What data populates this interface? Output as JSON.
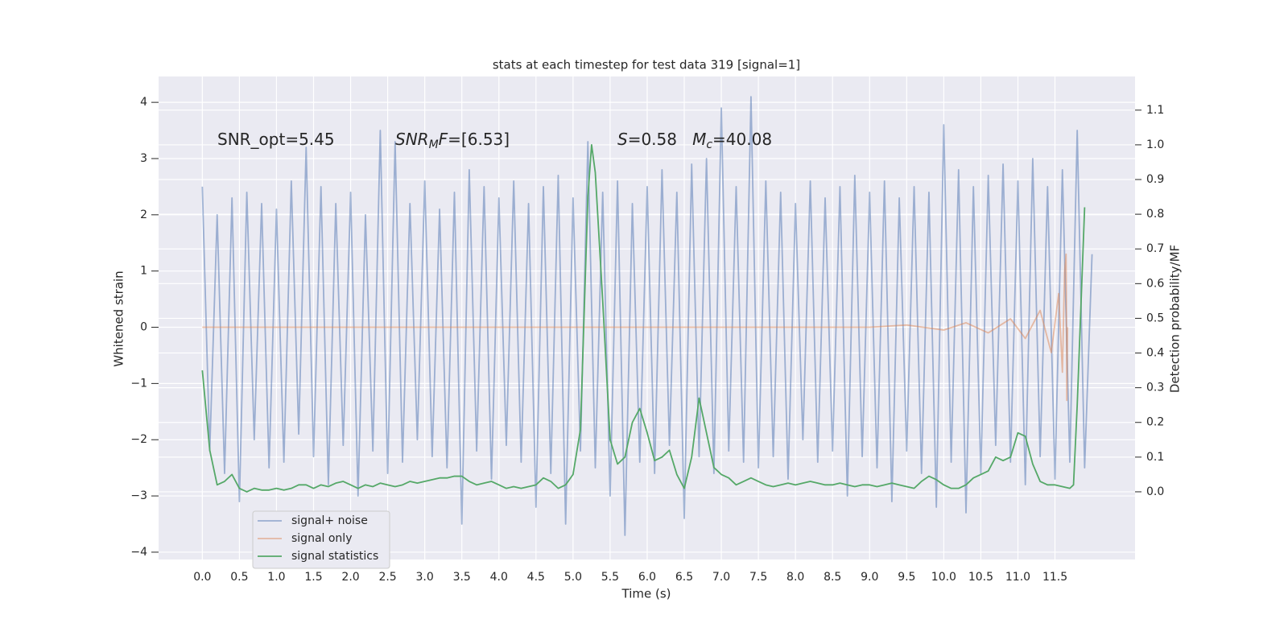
{
  "chart_data": {
    "type": "line",
    "title": "stats at each timestep for test data 319 [signal=1]",
    "xlabel": "Time (s)",
    "ylabel": "Whitened strain",
    "y2label": "Detection probability/MF",
    "xlim": [
      -0.59,
      12.58
    ],
    "ylim": [
      -4.13,
      4.46
    ],
    "y2lim": [
      -0.195,
      1.197
    ],
    "xticks": [
      {
        "value": 0,
        "label": "0.0"
      },
      0.5,
      {
        "value": 1,
        "label": "1.0"
      },
      1.5,
      {
        "value": 2,
        "label": "2.0"
      },
      2.5,
      {
        "value": 3,
        "label": "3.0"
      },
      3.5,
      {
        "value": 4,
        "label": "4.0"
      },
      4.5,
      {
        "value": 5,
        "label": "5.0"
      },
      5.5,
      {
        "value": 6,
        "label": "6.0"
      },
      6.5,
      {
        "value": 7,
        "label": "7.0"
      },
      7.5,
      {
        "value": 8,
        "label": "8.0"
      },
      8.5,
      {
        "value": 9,
        "label": "9.0"
      },
      9.5,
      {
        "value": 10,
        "label": "10.0"
      },
      10.5,
      {
        "value": 11,
        "label": "11.0"
      },
      11.5
    ],
    "yticks": [
      {
        "value": -4,
        "label": "−4"
      },
      {
        "value": -3,
        "label": "−3"
      },
      {
        "value": -2,
        "label": "−2"
      },
      {
        "value": -1,
        "label": "−1"
      },
      0,
      1,
      2,
      3,
      4
    ],
    "y2ticks": [
      {
        "value": 0,
        "label": "0.0"
      },
      0.1,
      0.2,
      0.3,
      0.4,
      0.5,
      0.6,
      0.7,
      0.8,
      0.9,
      {
        "value": 1,
        "label": "1.0"
      },
      1.1
    ],
    "grid": true,
    "legend": "lower left",
    "annotations": [
      {
        "parts": [
          {
            "text": "SNR_opt=5.45",
            "style": "normal"
          }
        ]
      },
      {
        "parts": [
          {
            "text": "SNR",
            "style": "italic"
          },
          {
            "text": "M",
            "style": "sub"
          },
          {
            "text": "F",
            "style": "italic"
          },
          {
            "text": "=[6.53]",
            "style": "normal"
          }
        ]
      },
      {
        "parts": [
          {
            "text": "S",
            "style": "italic"
          },
          {
            "text": "=0.58   ",
            "style": "normal"
          },
          {
            "text": "M",
            "style": "italic"
          },
          {
            "text": "c",
            "style": "sub"
          },
          {
            "text": "=40.08",
            "style": "normal"
          }
        ]
      }
    ],
    "series": [
      {
        "name": "signal+ noise",
        "color": "#4c72b0",
        "opacity": 0.5,
        "x": [
          0,
          0.1,
          0.2,
          0.3,
          0.4,
          0.5,
          0.6,
          0.7,
          0.8,
          0.9,
          1,
          1.1,
          1.2,
          1.3,
          1.4,
          1.5,
          1.6,
          1.7,
          1.8,
          1.9,
          2,
          2.1,
          2.2,
          2.3,
          2.4,
          2.5,
          2.6,
          2.7,
          2.8,
          2.9,
          3,
          3.1,
          3.2,
          3.3,
          3.4,
          3.5,
          3.6,
          3.7,
          3.8,
          3.9,
          4,
          4.1,
          4.2,
          4.3,
          4.4,
          4.5,
          4.6,
          4.7,
          4.8,
          4.9,
          5,
          5.1,
          5.2,
          5.3,
          5.4,
          5.5,
          5.6,
          5.7,
          5.8,
          5.9,
          6,
          6.1,
          6.2,
          6.3,
          6.4,
          6.5,
          6.6,
          6.7,
          6.8,
          6.9,
          7,
          7.1,
          7.2,
          7.3,
          7.4,
          7.5,
          7.6,
          7.7,
          7.8,
          7.9,
          8,
          8.1,
          8.2,
          8.3,
          8.4,
          8.5,
          8.6,
          8.7,
          8.8,
          8.9,
          9,
          9.1,
          9.2,
          9.3,
          9.4,
          9.5,
          9.6,
          9.7,
          9.8,
          9.9,
          10,
          10.1,
          10.2,
          10.3,
          10.4,
          10.5,
          10.6,
          10.7,
          10.8,
          10.9,
          11,
          11.1,
          11.2,
          11.3,
          11.4,
          11.5,
          11.6,
          11.7,
          11.8,
          11.9,
          12
        ],
        "values": [
          2.5,
          -2.2,
          2.0,
          -2.6,
          2.3,
          -3.1,
          2.4,
          -2.0,
          2.2,
          -2.5,
          2.1,
          -2.4,
          2.6,
          -1.9,
          3.2,
          -2.3,
          2.5,
          -2.8,
          2.2,
          -2.1,
          2.4,
          -3.0,
          2.0,
          -2.2,
          3.5,
          -2.6,
          3.3,
          -2.4,
          2.2,
          -2.0,
          2.6,
          -2.3,
          2.1,
          -2.5,
          2.4,
          -3.5,
          2.8,
          -2.2,
          2.5,
          -2.7,
          2.3,
          -2.1,
          2.6,
          -2.4,
          2.2,
          -3.2,
          2.5,
          -2.6,
          2.7,
          -3.5,
          2.3,
          -2.2,
          3.3,
          -2.5,
          2.4,
          -3.0,
          2.6,
          -3.7,
          2.2,
          -2.4,
          2.5,
          -2.6,
          2.8,
          -2.1,
          2.4,
          -3.4,
          2.9,
          -2.3,
          3.0,
          -2.6,
          3.9,
          -2.2,
          2.5,
          -2.4,
          4.1,
          -2.5,
          2.6,
          -2.3,
          2.4,
          -2.7,
          2.2,
          -2.0,
          2.6,
          -2.4,
          2.3,
          -2.2,
          2.5,
          -3.0,
          2.7,
          -2.3,
          2.4,
          -2.5,
          2.6,
          -3.1,
          2.3,
          -2.2,
          2.5,
          -2.6,
          2.4,
          -3.2,
          3.6,
          -2.4,
          2.8,
          -3.3,
          2.5,
          -2.6,
          2.7,
          -2.1,
          2.9,
          -2.4,
          2.6,
          -2.8,
          3.0,
          -2.3,
          2.5,
          -2.7,
          2.8,
          -2.4,
          3.5,
          -2.5,
          1.3
        ]
      },
      {
        "name": "signal only",
        "color": "#dd8452",
        "opacity": 0.5,
        "x": [
          0,
          9.0,
          9.5,
          10.0,
          10.3,
          10.6,
          10.9,
          11.1,
          11.3,
          11.45,
          11.55,
          11.6,
          11.63,
          11.65,
          11.66,
          11.67
        ],
        "values": [
          0,
          0,
          0.04,
          -0.05,
          0.08,
          -0.1,
          0.15,
          -0.2,
          0.3,
          -0.45,
          0.6,
          -0.8,
          1.0,
          1.3,
          -1.3,
          0
        ]
      },
      {
        "name": "signal statistics",
        "color": "#55a868",
        "opacity": 1,
        "axis": "y2",
        "x": [
          0,
          0.1,
          0.2,
          0.3,
          0.4,
          0.5,
          0.6,
          0.7,
          0.8,
          0.9,
          1,
          1.1,
          1.2,
          1.3,
          1.4,
          1.5,
          1.6,
          1.7,
          1.8,
          1.9,
          2,
          2.1,
          2.2,
          2.3,
          2.4,
          2.5,
          2.6,
          2.7,
          2.8,
          2.9,
          3,
          3.1,
          3.2,
          3.3,
          3.4,
          3.5,
          3.6,
          3.7,
          3.8,
          3.9,
          4,
          4.1,
          4.2,
          4.3,
          4.4,
          4.5,
          4.6,
          4.7,
          4.8,
          4.9,
          5,
          5.1,
          5.2,
          5.25,
          5.3,
          5.4,
          5.5,
          5.6,
          5.7,
          5.8,
          5.9,
          6,
          6.1,
          6.2,
          6.3,
          6.4,
          6.5,
          6.6,
          6.7,
          6.8,
          6.9,
          7,
          7.1,
          7.2,
          7.3,
          7.4,
          7.5,
          7.6,
          7.7,
          7.8,
          7.9,
          8,
          8.1,
          8.2,
          8.3,
          8.4,
          8.5,
          8.6,
          8.7,
          8.8,
          8.9,
          9,
          9.1,
          9.2,
          9.3,
          9.4,
          9.5,
          9.6,
          9.7,
          9.8,
          9.9,
          10,
          10.1,
          10.2,
          10.3,
          10.4,
          10.5,
          10.6,
          10.7,
          10.8,
          10.9,
          11,
          11.1,
          11.2,
          11.3,
          11.4,
          11.5,
          11.6,
          11.7,
          11.75,
          11.8,
          11.9
        ],
        "values": [
          0.35,
          0.12,
          0.02,
          0.03,
          0.05,
          0.01,
          0.0,
          0.01,
          0.005,
          0.005,
          0.01,
          0.005,
          0.01,
          0.02,
          0.02,
          0.01,
          0.02,
          0.015,
          0.025,
          0.03,
          0.02,
          0.01,
          0.02,
          0.015,
          0.025,
          0.02,
          0.015,
          0.02,
          0.03,
          0.025,
          0.03,
          0.035,
          0.04,
          0.04,
          0.045,
          0.045,
          0.03,
          0.02,
          0.025,
          0.03,
          0.02,
          0.01,
          0.015,
          0.01,
          0.015,
          0.02,
          0.04,
          0.03,
          0.01,
          0.02,
          0.05,
          0.18,
          0.85,
          1.0,
          0.92,
          0.55,
          0.15,
          0.08,
          0.1,
          0.2,
          0.24,
          0.17,
          0.09,
          0.1,
          0.12,
          0.05,
          0.01,
          0.1,
          0.27,
          0.17,
          0.07,
          0.05,
          0.04,
          0.02,
          0.03,
          0.04,
          0.03,
          0.02,
          0.015,
          0.02,
          0.025,
          0.02,
          0.025,
          0.03,
          0.025,
          0.02,
          0.02,
          0.025,
          0.02,
          0.015,
          0.02,
          0.02,
          0.015,
          0.02,
          0.025,
          0.02,
          0.015,
          0.01,
          0.03,
          0.045,
          0.035,
          0.02,
          0.01,
          0.01,
          0.02,
          0.04,
          0.05,
          0.06,
          0.1,
          0.09,
          0.1,
          0.17,
          0.16,
          0.08,
          0.03,
          0.02,
          0.02,
          0.015,
          0.01,
          0.02,
          0.25,
          0.82
        ]
      }
    ]
  }
}
